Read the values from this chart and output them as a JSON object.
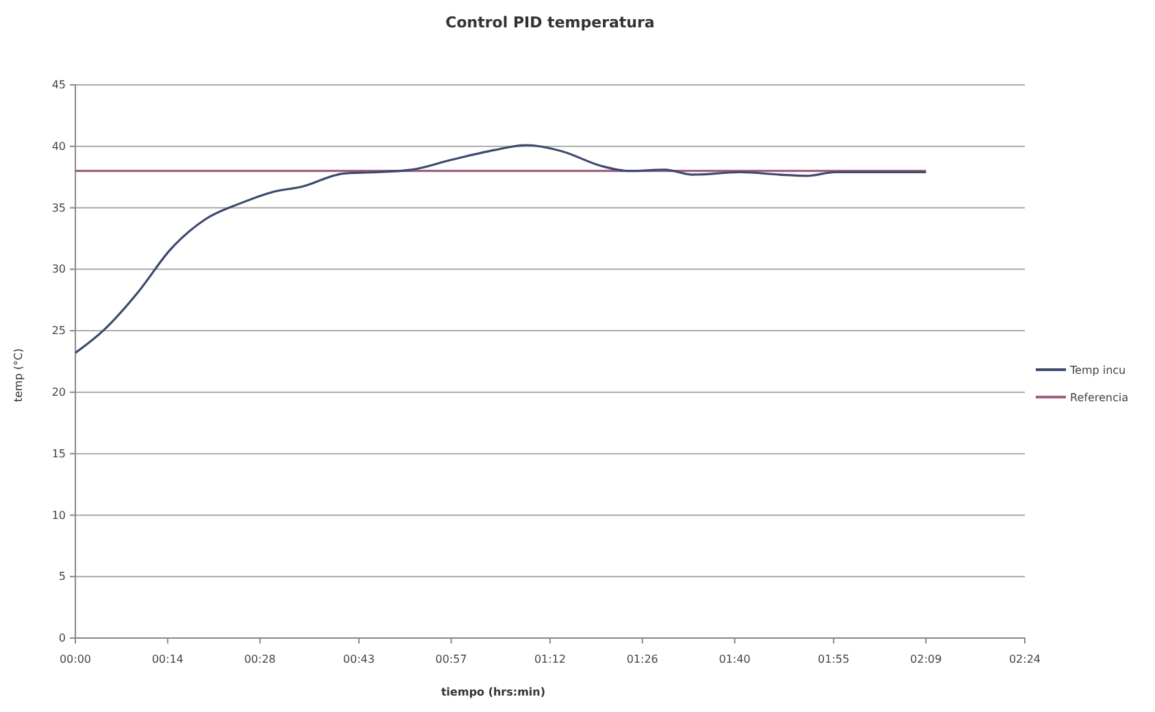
{
  "chart_data": {
    "type": "line",
    "title": "Control PID temperatura",
    "xlabel": "tiempo (hrs:min)",
    "ylabel": "temp (°C)",
    "xlim": [
      0,
      2.4
    ],
    "xticks": [
      {
        "value": 0,
        "label": "00:00"
      },
      {
        "value": 0.233333,
        "label": "00:14"
      },
      {
        "value": 0.466667,
        "label": "00:28"
      },
      {
        "value": 0.716667,
        "label": "00:43"
      },
      {
        "value": 0.95,
        "label": "00:57"
      },
      {
        "value": 1.2,
        "label": "01:12"
      },
      {
        "value": 1.433333,
        "label": "01:26"
      },
      {
        "value": 1.666667,
        "label": "01:40"
      },
      {
        "value": 1.916667,
        "label": "01:55"
      },
      {
        "value": 2.15,
        "label": "02:09"
      },
      {
        "value": 2.4,
        "label": "02:24"
      }
    ],
    "ylim": [
      0,
      45
    ],
    "yticks": [
      0,
      5,
      10,
      15,
      20,
      25,
      30,
      35,
      40,
      45
    ],
    "grid": "y",
    "legend": "right",
    "marker": "none",
    "line_style": "solid",
    "series": [
      {
        "name": "Temp incu",
        "color": "#3d4a6e",
        "x": [
          0,
          0.07,
          0.16,
          0.24,
          0.33,
          0.42,
          0.5,
          0.57,
          0.68,
          0.76,
          0.85,
          0.95,
          1.06,
          1.14,
          1.23,
          1.33,
          1.4,
          1.49,
          1.56,
          1.68,
          1.78,
          1.85,
          1.92,
          2.15
        ],
        "values": [
          23.2,
          25,
          28.2,
          31.6,
          34.1,
          35.4,
          36.3,
          36.7,
          37.8,
          37.9,
          38.1,
          38.9,
          39.7,
          40.1,
          39.6,
          38.4,
          38,
          38.1,
          37.7,
          37.9,
          37.7,
          37.6,
          37.9,
          37.9
        ]
      },
      {
        "name": "Referencia",
        "color": "#a0607f",
        "x": [
          0,
          2.15
        ],
        "values": [
          38,
          38
        ]
      }
    ]
  }
}
